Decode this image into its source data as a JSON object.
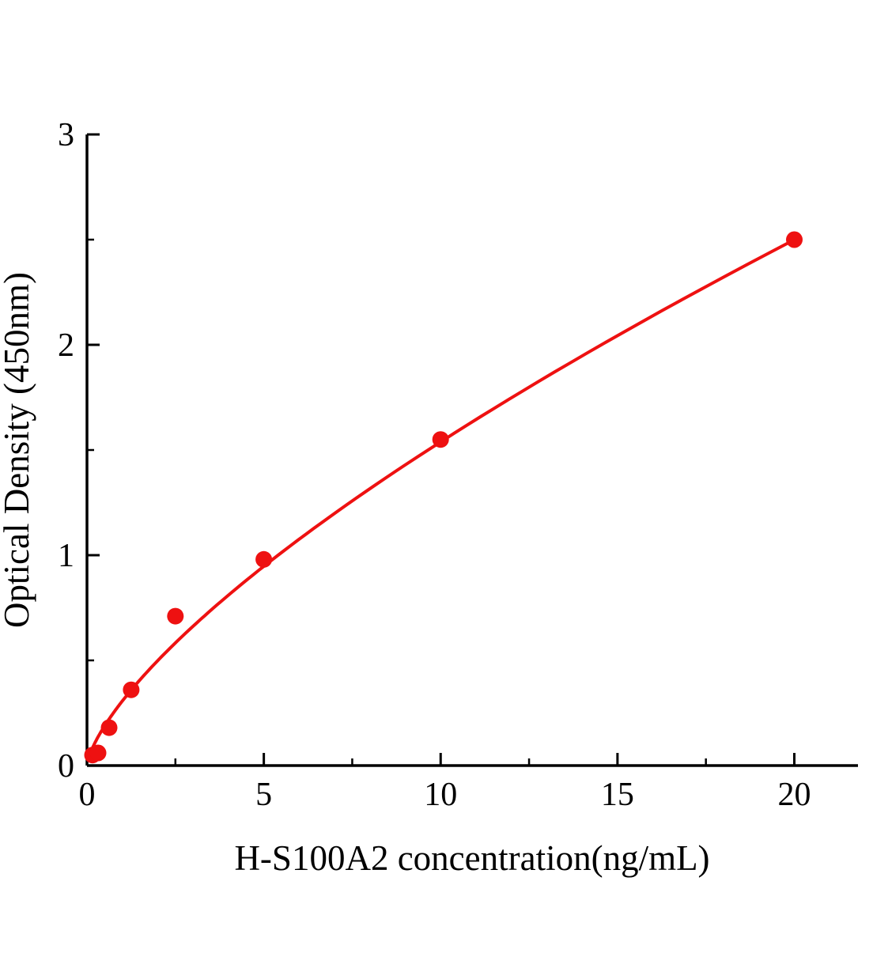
{
  "chart_data": {
    "type": "scatter",
    "title": "",
    "xlabel": "H-S100A2 concentration(ng/mL)",
    "ylabel": "Optical Density (450nm)",
    "x": [
      0.156,
      0.313,
      0.625,
      1.25,
      2.5,
      5,
      10,
      20
    ],
    "y": [
      0.05,
      0.06,
      0.18,
      0.36,
      0.71,
      0.98,
      1.55,
      2.5
    ],
    "point_color": "#ee1111",
    "line_color": "#ee1111",
    "axis_color": "#000000",
    "xlim": [
      0,
      21.8
    ],
    "ylim": [
      0,
      3
    ],
    "x_ticks": [
      0,
      5,
      10,
      15,
      20
    ],
    "y_ticks": [
      0,
      1,
      2,
      3
    ],
    "x_minor_step": 2.5,
    "y_minor_step": 0.5,
    "grid": false,
    "legend": "none",
    "fit": {
      "type": "power",
      "a": 0.307,
      "b": 0.7
    },
    "curve_x_range": [
      0.08,
      20
    ],
    "marker": "circle",
    "marker_radius_px": 10.5
  }
}
